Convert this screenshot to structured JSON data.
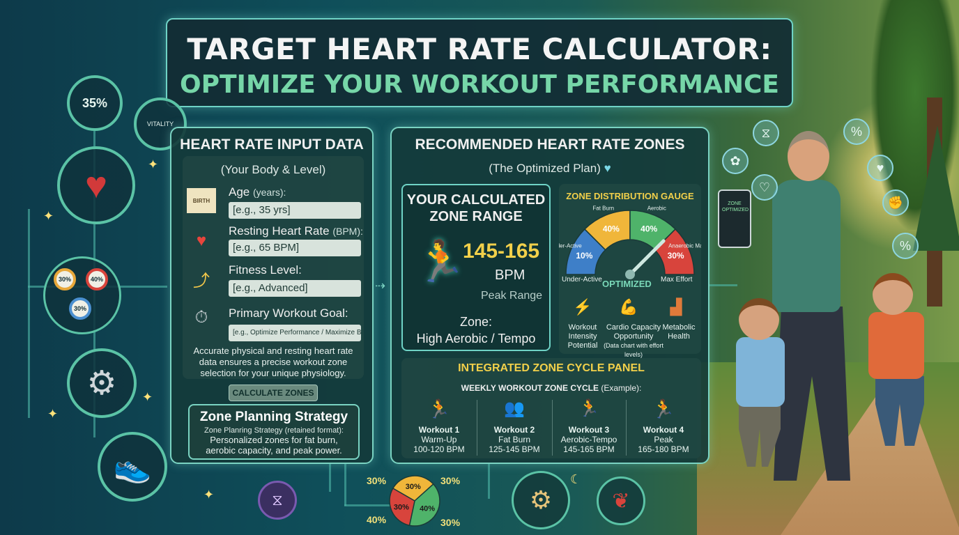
{
  "title": {
    "line1": "TARGET HEART RATE CALCULATOR:",
    "line2": "OPTIMIZE YOUR WORKOUT PERFORMANCE"
  },
  "decor": {
    "ring_percent": "35%",
    "ring_label": "VITALITY",
    "mini_pies": [
      "30%",
      "40%",
      "30%"
    ],
    "bottom_pie": {
      "segments": [
        "30%",
        "40%",
        "30%"
      ],
      "outer_labels": [
        "30%",
        "30%",
        "40%",
        "30%"
      ]
    }
  },
  "input_panel": {
    "header": "HEART RATE INPUT DATA",
    "subheader": "(Your Body & Level)",
    "fields": [
      {
        "icon": "certificate-icon",
        "icon_text": "BIRTH",
        "label": "Age",
        "unit": "(years):",
        "value": "[e.g., 35 yrs]"
      },
      {
        "icon": "heart-pulse-icon",
        "label": "Resting Heart Rate",
        "unit": "(BPM):",
        "value": "[e.g., 65 BPM]"
      },
      {
        "icon": "stairs-climber-icon",
        "label": "Fitness Level:",
        "unit": "",
        "value": "[e.g., Advanced]"
      },
      {
        "icon": "dumbbell-stopwatch-icon",
        "label": "Primary Workout Goal:",
        "unit": "",
        "value": "[e.g., Optimize Performance / Maximize Burn]"
      }
    ],
    "note": "Accurate physical and resting heart rate data ensures a precise workout zone selection for your unique physiology.",
    "button": "CALCULATE ZONES",
    "strategy": {
      "title": "Zone Planning Strategy",
      "line1": "Zone Planring Strategy (retained format):",
      "line2": "Personalized zones for fat burn,",
      "line3": "aerobic capacity, and peak power."
    }
  },
  "zones_panel": {
    "header": "RECOMMENDED HEART RATE ZONES",
    "subheader": "(The Optimized Plan)",
    "calculated": {
      "title_line1": "YOUR CALCULATED",
      "title_line2": "ZONE RANGE",
      "range": "145-165",
      "unit": "BPM",
      "caption": "Peak Range",
      "zone_label": "Zone:",
      "zone_value": "High Aerobic / Tempo"
    },
    "gauge": {
      "title": "ZONE DISTRIBUTION GAUGE",
      "segments": [
        {
          "label": "Under-Active",
          "value": "10%",
          "color": "#3e7fc8"
        },
        {
          "label": "Fat Burn",
          "value": "40%",
          "color": "#f0b63a"
        },
        {
          "label": "Aerobic",
          "value": "40%",
          "color": "#4fb36a"
        },
        {
          "label": "Anaerobic Max Effort",
          "value": "30%",
          "color": "#d8443c"
        }
      ],
      "left_caption": "Under-Active",
      "center_caption": "OPTIMIZED",
      "right_caption": "Max Effort",
      "needle_value": 0.75,
      "metrics": [
        {
          "icon": "lightning-icon",
          "label_l1": "Workout",
          "label_l2": "Intensity",
          "label_l3": "Potential"
        },
        {
          "icon": "muscle-icon",
          "label_l1": "Cardio Capacity",
          "label_l2": "Opportunity",
          "label_l3": "(Data chart with effort levels)"
        },
        {
          "icon": "bar-chart-icon",
          "label_l1": "Metabolic",
          "label_l2": "Health",
          "label_l3": ""
        }
      ]
    },
    "cycle": {
      "title": "INTEGRATED ZONE CYCLE PANEL",
      "subtitle": "WEEKLY WORKOUT ZONE CYCLE",
      "subtitle_suffix": "(Example):",
      "workouts": [
        {
          "name": "Workout 1",
          "type": "Warm-Up",
          "range": "100-120 BPM",
          "icon": "runner-icon"
        },
        {
          "name": "Workout 2",
          "type": "Fat Burn",
          "range": "125-145 BPM",
          "icon": "group-icon"
        },
        {
          "name": "Workout 3",
          "type": "Aerobic-Tempo",
          "range": "145-165 BPM",
          "icon": "group-runners-icon"
        },
        {
          "name": "Workout 4",
          "type": "Peak",
          "range": "165-180 BPM",
          "icon": "sprinter-icon"
        }
      ]
    }
  },
  "phone_text": "ZONE OPTIMIZED",
  "chips": [
    "%",
    "%",
    "%"
  ]
}
